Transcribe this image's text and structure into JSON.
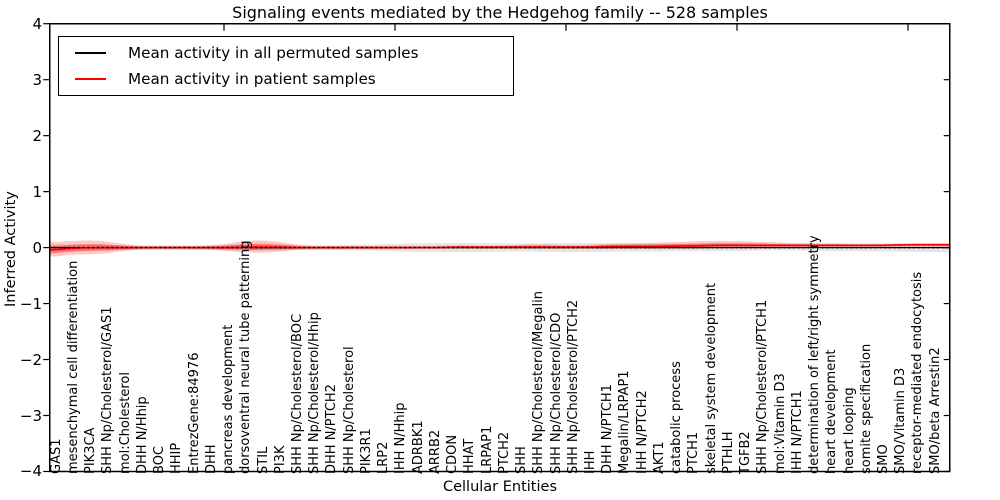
{
  "figure": {
    "title": "Signaling events mediated by the Hedgehog family -- 528 samples",
    "xlabel": "Cellular Entities",
    "ylabel": "Inferred Activity"
  },
  "legend": {
    "items": [
      {
        "label": "Mean activity in all permuted samples",
        "color": "#000000"
      },
      {
        "label": "Mean activity in patient samples",
        "color": "#ff0000"
      }
    ]
  },
  "axes": {
    "y_tick_labels": [
      "4",
      "3",
      "2",
      "1",
      "0",
      "−1",
      "−2",
      "−3",
      "−4"
    ]
  },
  "chart_data": {
    "type": "area",
    "title": "Signaling events mediated by the Hedgehog family -- 528 samples",
    "xlabel": "Cellular Entities",
    "ylabel": "Inferred Activity",
    "ylim": [
      -4,
      4
    ],
    "yticks": [
      4,
      3,
      2,
      1,
      0,
      -1,
      -2,
      -3,
      -4
    ],
    "grid": false,
    "legend_position": "upper left",
    "categories": [
      "GAS1",
      "mesenchymal cell differentiation",
      "PIK3CA",
      "SHH Np/Cholesterol/GAS1",
      "mol:Cholesterol",
      "DHH N/Hhip",
      "BOC",
      "HHIP",
      "EntrezGene:84976",
      "DHH",
      "pancreas development",
      "dorsoventral neural tube patterning",
      "STIL",
      "PI3K",
      "SHH Np/Cholesterol/BOC",
      "SHH Np/Cholesterol/Hhip",
      "DHH N/PTCH2",
      "SHH Np/Cholesterol",
      "PIK3R1",
      "LRP2",
      "IHH N/Hhip",
      "ADRBK1",
      "ARRB2",
      "CDON",
      "HHAT",
      "LRPAP1",
      "PTCH2",
      "SHH",
      "SHH Np/Cholesterol/Megalin",
      "SHH Np/Cholesterol/CDO",
      "SHH Np/Cholesterol/PTCH2",
      "IHH",
      "DHH N/PTCH1",
      "Megalin/LRPAP1",
      "IHH N/PTCH2",
      "AKT1",
      "catabolic process",
      "PTCH1",
      "skeletal system development",
      "PTHLH",
      "TGFB2",
      "SHH Np/Cholesterol/PTCH1",
      "mol:Vitamin D3",
      "IHH N/PTCH1",
      "determination of left/right symmetry",
      "heart development",
      "heart looping",
      "somite specification",
      "SMO",
      "SMO/Vitamin D3",
      "receptor-mediated endocytosis",
      "SMO/beta Arrestin2"
    ],
    "series": [
      {
        "name": "Mean activity in all permuted samples",
        "color": "#000000",
        "line_style": "solid with dotted overlay",
        "values": [
          0,
          0,
          0,
          0,
          0,
          0,
          0,
          0,
          0,
          0,
          0,
          0,
          0,
          0,
          0,
          0,
          0,
          0,
          0,
          0,
          0,
          0,
          0,
          0,
          0,
          0,
          0,
          0,
          0,
          0,
          0,
          0,
          0,
          0,
          0,
          0,
          0,
          0,
          0,
          0,
          0,
          0,
          0,
          0,
          0,
          0,
          0,
          0,
          0,
          0,
          0,
          0
        ]
      },
      {
        "name": "Mean activity in patient samples",
        "color": "#ff0000",
        "line_style": "solid",
        "values": [
          -0.04,
          -0.01,
          0,
          0,
          0,
          0,
          0,
          0,
          0,
          0,
          0,
          0.01,
          0.01,
          0.01,
          0,
          0,
          0,
          0,
          0,
          0,
          0,
          0,
          0,
          0.01,
          0.01,
          0.01,
          0.01,
          0.01,
          0.01,
          0.01,
          0.01,
          0.01,
          0.02,
          0.02,
          0.02,
          0.02,
          0.03,
          0.03,
          0.04,
          0.04,
          0.04,
          0.04,
          0.04,
          0.04,
          0.04,
          0.04,
          0.04,
          0.04,
          0.04,
          0.05,
          0.05,
          0.05
        ]
      }
    ],
    "bands": [
      {
        "name": "patient-sample-spread",
        "color": "rgba(255,0,0,0.22)",
        "inner_color": "rgba(255,0,0,0.38)",
        "upper": [
          0.1,
          0.12,
          0.13,
          0.11,
          0.06,
          0.03,
          0.03,
          0.03,
          0.03,
          0.04,
          0.07,
          0.12,
          0.13,
          0.1,
          0.05,
          0.03,
          0.03,
          0.03,
          0.03,
          0.03,
          0.03,
          0.03,
          0.03,
          0.04,
          0.04,
          0.03,
          0.04,
          0.05,
          0.06,
          0.05,
          0.04,
          0.05,
          0.07,
          0.08,
          0.08,
          0.09,
          0.1,
          0.11,
          0.12,
          0.12,
          0.11,
          0.1,
          0.09,
          0.08,
          0.08,
          0.08,
          0.07,
          0.07,
          0.07,
          0.07,
          0.08,
          0.08
        ],
        "lower": [
          -0.16,
          -0.12,
          -0.12,
          -0.1,
          -0.06,
          -0.03,
          -0.03,
          -0.03,
          -0.03,
          -0.04,
          -0.06,
          -0.09,
          -0.09,
          -0.07,
          -0.04,
          -0.03,
          -0.03,
          -0.03,
          -0.03,
          -0.03,
          -0.03,
          -0.02,
          -0.02,
          -0.02,
          -0.02,
          -0.02,
          -0.02,
          -0.02,
          -0.02,
          -0.02,
          -0.02,
          -0.02,
          -0.02,
          -0.02,
          -0.02,
          -0.02,
          -0.02,
          -0.02,
          -0.01,
          -0.01,
          -0.01,
          0,
          0,
          0,
          0.01,
          0.01,
          0.01,
          0.01,
          0.01,
          0.02,
          0.02,
          0.02
        ]
      },
      {
        "name": "permuted-sample-spread",
        "color": "rgba(0,0,0,0.10)",
        "upper": [
          0.06,
          0.05,
          0.05,
          0.05,
          0.04,
          0.04,
          0.04,
          0.04,
          0.04,
          0.04,
          0.05,
          0.05,
          0.05,
          0.05,
          0.04,
          0.04,
          0.04,
          0.05,
          0.05,
          0.06,
          0.07,
          0.08,
          0.08,
          0.08,
          0.08,
          0.08,
          0.07,
          0.07,
          0.07,
          0.08,
          0.08,
          0.08,
          0.07,
          0.07,
          0.07,
          0.07,
          0.06,
          0.06,
          0.06,
          0.06,
          0.06,
          0.05,
          0.05,
          0.05,
          0.06,
          0.06,
          0.06,
          0.06,
          0.06,
          0.07,
          0.07,
          0.07
        ],
        "lower": [
          -0.06,
          -0.05,
          -0.05,
          -0.05,
          -0.04,
          -0.04,
          -0.04,
          -0.04,
          -0.04,
          -0.04,
          -0.05,
          -0.05,
          -0.05,
          -0.05,
          -0.04,
          -0.04,
          -0.04,
          -0.05,
          -0.05,
          -0.06,
          -0.07,
          -0.08,
          -0.08,
          -0.08,
          -0.08,
          -0.08,
          -0.07,
          -0.07,
          -0.07,
          -0.08,
          -0.08,
          -0.08,
          -0.07,
          -0.07,
          -0.07,
          -0.07,
          -0.06,
          -0.06,
          -0.06,
          -0.06,
          -0.06,
          -0.05,
          -0.05,
          -0.05,
          -0.06,
          -0.06,
          -0.06,
          -0.07,
          -0.07,
          -0.07,
          -0.08,
          -0.08
        ]
      }
    ]
  }
}
